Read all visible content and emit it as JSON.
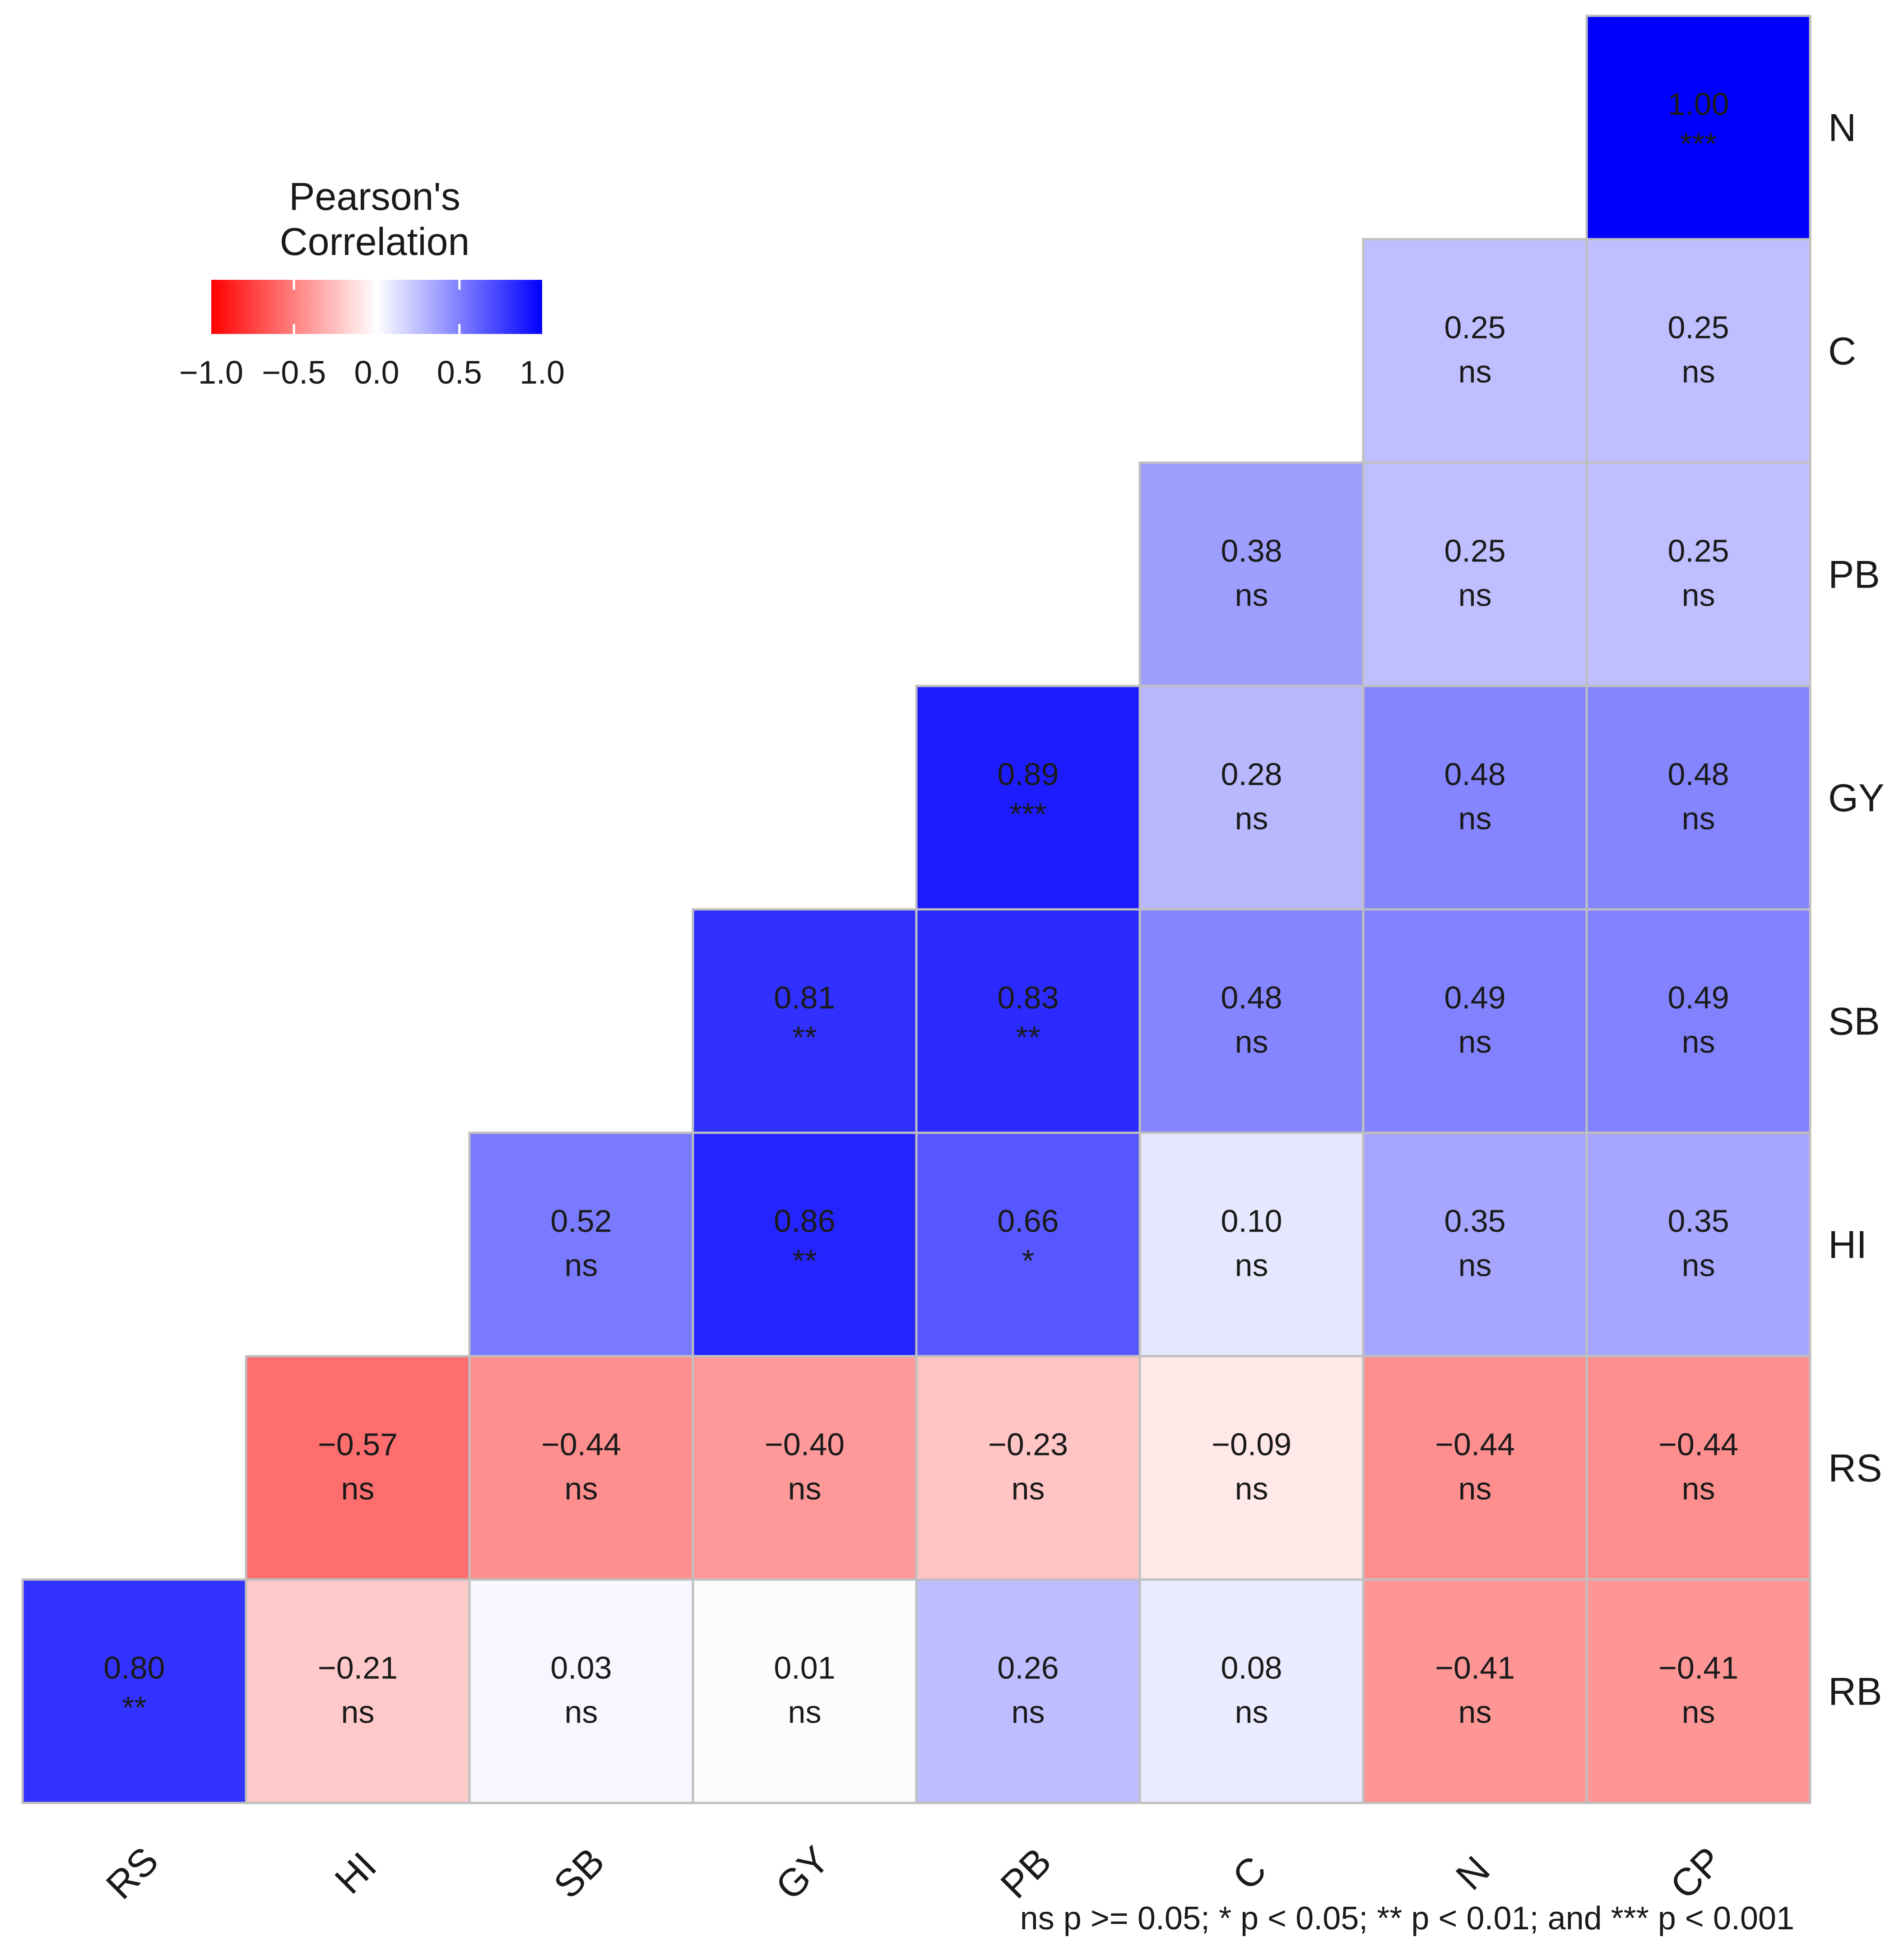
{
  "chart_data": {
    "type": "heatmap",
    "legend": {
      "title_line1": "Pearson's",
      "title_line2": "Correlation",
      "ticks": [
        "−1.0",
        "−0.5",
        "0.0",
        "0.5",
        "1.0"
      ],
      "range": [
        -1,
        1
      ],
      "placement": "top-left"
    },
    "colors": {
      "negative": "#ff0000",
      "zero": "#ffffff",
      "positive": "#0000ff",
      "cell_border": "#bfbfbf"
    },
    "x_labels": [
      "RS",
      "HI",
      "SB",
      "GY",
      "PB",
      "C",
      "N",
      "CP"
    ],
    "y_labels": [
      "N",
      "C",
      "PB",
      "GY",
      "SB",
      "HI",
      "RS",
      "RB"
    ],
    "rows": [
      {
        "label": "N",
        "cells": [
          {
            "col": 7,
            "value": 1.0,
            "text": "1.00",
            "sig": "***"
          }
        ]
      },
      {
        "label": "C",
        "cells": [
          {
            "col": 6,
            "value": 0.25,
            "text": "0.25",
            "sig": "ns"
          },
          {
            "col": 7,
            "value": 0.25,
            "text": "0.25",
            "sig": "ns"
          }
        ]
      },
      {
        "label": "PB",
        "cells": [
          {
            "col": 5,
            "value": 0.38,
            "text": "0.38",
            "sig": "ns"
          },
          {
            "col": 6,
            "value": 0.25,
            "text": "0.25",
            "sig": "ns"
          },
          {
            "col": 7,
            "value": 0.25,
            "text": "0.25",
            "sig": "ns"
          }
        ]
      },
      {
        "label": "GY",
        "cells": [
          {
            "col": 4,
            "value": 0.89,
            "text": "0.89",
            "sig": "***"
          },
          {
            "col": 5,
            "value": 0.28,
            "text": "0.28",
            "sig": "ns"
          },
          {
            "col": 6,
            "value": 0.48,
            "text": "0.48",
            "sig": "ns"
          },
          {
            "col": 7,
            "value": 0.48,
            "text": "0.48",
            "sig": "ns"
          }
        ]
      },
      {
        "label": "SB",
        "cells": [
          {
            "col": 3,
            "value": 0.81,
            "text": "0.81",
            "sig": "**"
          },
          {
            "col": 4,
            "value": 0.83,
            "text": "0.83",
            "sig": "**"
          },
          {
            "col": 5,
            "value": 0.48,
            "text": "0.48",
            "sig": "ns"
          },
          {
            "col": 6,
            "value": 0.49,
            "text": "0.49",
            "sig": "ns"
          },
          {
            "col": 7,
            "value": 0.49,
            "text": "0.49",
            "sig": "ns"
          }
        ]
      },
      {
        "label": "HI",
        "cells": [
          {
            "col": 2,
            "value": 0.52,
            "text": "0.52",
            "sig": "ns"
          },
          {
            "col": 3,
            "value": 0.86,
            "text": "0.86",
            "sig": "**"
          },
          {
            "col": 4,
            "value": 0.66,
            "text": "0.66",
            "sig": "*"
          },
          {
            "col": 5,
            "value": 0.1,
            "text": "0.10",
            "sig": "ns"
          },
          {
            "col": 6,
            "value": 0.35,
            "text": "0.35",
            "sig": "ns"
          },
          {
            "col": 7,
            "value": 0.35,
            "text": "0.35",
            "sig": "ns"
          }
        ]
      },
      {
        "label": "RS",
        "cells": [
          {
            "col": 1,
            "value": -0.57,
            "text": "−0.57",
            "sig": "ns"
          },
          {
            "col": 2,
            "value": -0.44,
            "text": "−0.44",
            "sig": "ns"
          },
          {
            "col": 3,
            "value": -0.4,
            "text": "−0.40",
            "sig": "ns"
          },
          {
            "col": 4,
            "value": -0.23,
            "text": "−0.23",
            "sig": "ns"
          },
          {
            "col": 5,
            "value": -0.09,
            "text": "−0.09",
            "sig": "ns"
          },
          {
            "col": 6,
            "value": -0.44,
            "text": "−0.44",
            "sig": "ns"
          },
          {
            "col": 7,
            "value": -0.44,
            "text": "−0.44",
            "sig": "ns"
          }
        ]
      },
      {
        "label": "RB",
        "cells": [
          {
            "col": 0,
            "value": 0.8,
            "text": "0.80",
            "sig": "**"
          },
          {
            "col": 1,
            "value": -0.21,
            "text": "−0.21",
            "sig": "ns"
          },
          {
            "col": 2,
            "value": 0.03,
            "text": "0.03",
            "sig": "ns"
          },
          {
            "col": 3,
            "value": 0.01,
            "text": "0.01",
            "sig": "ns"
          },
          {
            "col": 4,
            "value": 0.26,
            "text": "0.26",
            "sig": "ns"
          },
          {
            "col": 5,
            "value": 0.08,
            "text": "0.08",
            "sig": "ns"
          },
          {
            "col": 6,
            "value": -0.41,
            "text": "−0.41",
            "sig": "ns"
          },
          {
            "col": 7,
            "value": -0.41,
            "text": "−0.41",
            "sig": "ns"
          }
        ]
      }
    ],
    "caption": "ns p >= 0.05; * p < 0.05; ** p < 0.01; and *** p < 0.001"
  }
}
